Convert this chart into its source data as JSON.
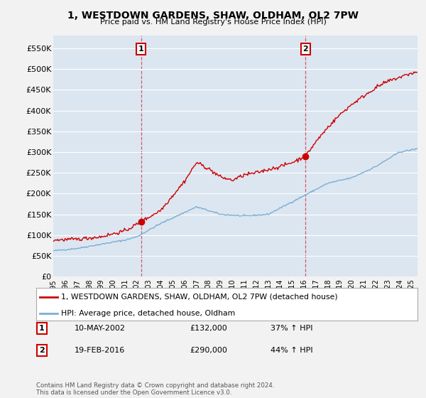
{
  "title": "1, WESTDOWN GARDENS, SHAW, OLDHAM, OL2 7PW",
  "subtitle": "Price paid vs. HM Land Registry's House Price Index (HPI)",
  "ylabel_ticks": [
    "£0",
    "£50K",
    "£100K",
    "£150K",
    "£200K",
    "£250K",
    "£300K",
    "£350K",
    "£400K",
    "£450K",
    "£500K",
    "£550K"
  ],
  "ytick_values": [
    0,
    50000,
    100000,
    150000,
    200000,
    250000,
    300000,
    350000,
    400000,
    450000,
    500000,
    550000
  ],
  "ylim": [
    0,
    580000
  ],
  "sale1_date_num": 2002.36,
  "sale1_price": 132000,
  "sale1_label": "1",
  "sale1_date_str": "10-MAY-2002",
  "sale1_hpi_change": "37% ↑ HPI",
  "sale2_date_num": 2016.12,
  "sale2_price": 290000,
  "sale2_label": "2",
  "sale2_date_str": "19-FEB-2016",
  "sale2_hpi_change": "44% ↑ HPI",
  "legend_line1": "1, WESTDOWN GARDENS, SHAW, OLDHAM, OL2 7PW (detached house)",
  "legend_line2": "HPI: Average price, detached house, Oldham",
  "footer": "Contains HM Land Registry data © Crown copyright and database right 2024.\nThis data is licensed under the Open Government Licence v3.0.",
  "line_color_red": "#cc0000",
  "line_color_blue": "#7bafd4",
  "bg_color": "#dce6f1",
  "fig_bg": "#f2f2f2",
  "xmin": 1995,
  "xmax": 2025.5,
  "hpi_key_x": [
    1995,
    1997,
    1999,
    2001,
    2002,
    2004,
    2007,
    2009,
    2011,
    2013,
    2016,
    2018,
    2020,
    2022,
    2024,
    2025.5
  ],
  "hpi_key_y": [
    62000,
    68000,
    78000,
    88000,
    96000,
    128000,
    168000,
    150000,
    146000,
    150000,
    195000,
    225000,
    238000,
    265000,
    300000,
    308000
  ],
  "red_key_x": [
    1995,
    1997,
    1999,
    2001,
    2002.36,
    2004,
    2006,
    2007,
    2008,
    2009,
    2010,
    2011,
    2012,
    2013,
    2014,
    2015,
    2016.12,
    2017,
    2018,
    2019,
    2020,
    2021,
    2022,
    2023,
    2024,
    2025,
    2025.5
  ],
  "red_key_y": [
    88000,
    90000,
    96000,
    110000,
    132000,
    160000,
    230000,
    275000,
    260000,
    240000,
    232000,
    245000,
    250000,
    258000,
    265000,
    275000,
    290000,
    325000,
    360000,
    390000,
    415000,
    435000,
    455000,
    470000,
    480000,
    490000,
    492000
  ]
}
